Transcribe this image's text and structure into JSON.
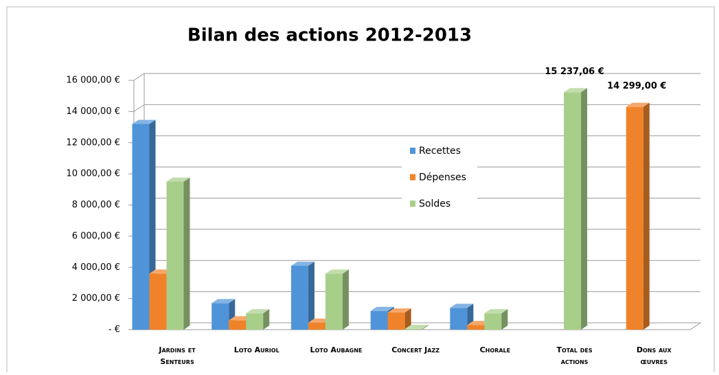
{
  "chart_data": {
    "type": "bar3d",
    "title": "Bilan des actions 2012-2013",
    "categories": [
      "Jardins et Senteurs",
      "Loto Auriol",
      "Loto Aubagne",
      "Concert Jazz",
      "Chorale",
      "Total des actions",
      "Dons aux œuvres"
    ],
    "series": [
      {
        "name": "Recettes",
        "color": "#4f94d8",
        "values": [
          13200,
          1700,
          4100,
          1200,
          1400,
          null,
          null
        ]
      },
      {
        "name": "Dépenses",
        "color": "#f0832a",
        "values": [
          3600,
          600,
          450,
          1100,
          300,
          null,
          14299
        ],
        "value_labels": [
          null,
          null,
          null,
          null,
          null,
          null,
          "14 299,00 €"
        ]
      },
      {
        "name": "Soldes",
        "color": "#a8cf8a",
        "values": [
          9500,
          1050,
          3600,
          50,
          1050,
          15237.06,
          null
        ],
        "value_labels": [
          null,
          null,
          null,
          null,
          null,
          "15 237,06 €",
          null
        ]
      }
    ],
    "ylim": [
      0,
      16000
    ],
    "yticks": [
      {
        "value": 0,
        "label": "-  €"
      },
      {
        "value": 2000,
        "label": "2 000,00 €"
      },
      {
        "value": 4000,
        "label": "4 000,00 €"
      },
      {
        "value": 6000,
        "label": "6 000,00 €"
      },
      {
        "value": 8000,
        "label": "8 000,00 €"
      },
      {
        "value": 10000,
        "label": "10 000,00 €"
      },
      {
        "value": 12000,
        "label": "12 000,00 €"
      },
      {
        "value": 14000,
        "label": "14 000,00 €"
      },
      {
        "value": 16000,
        "label": "16 000,00 €"
      }
    ],
    "grid": true,
    "legend": "center"
  }
}
